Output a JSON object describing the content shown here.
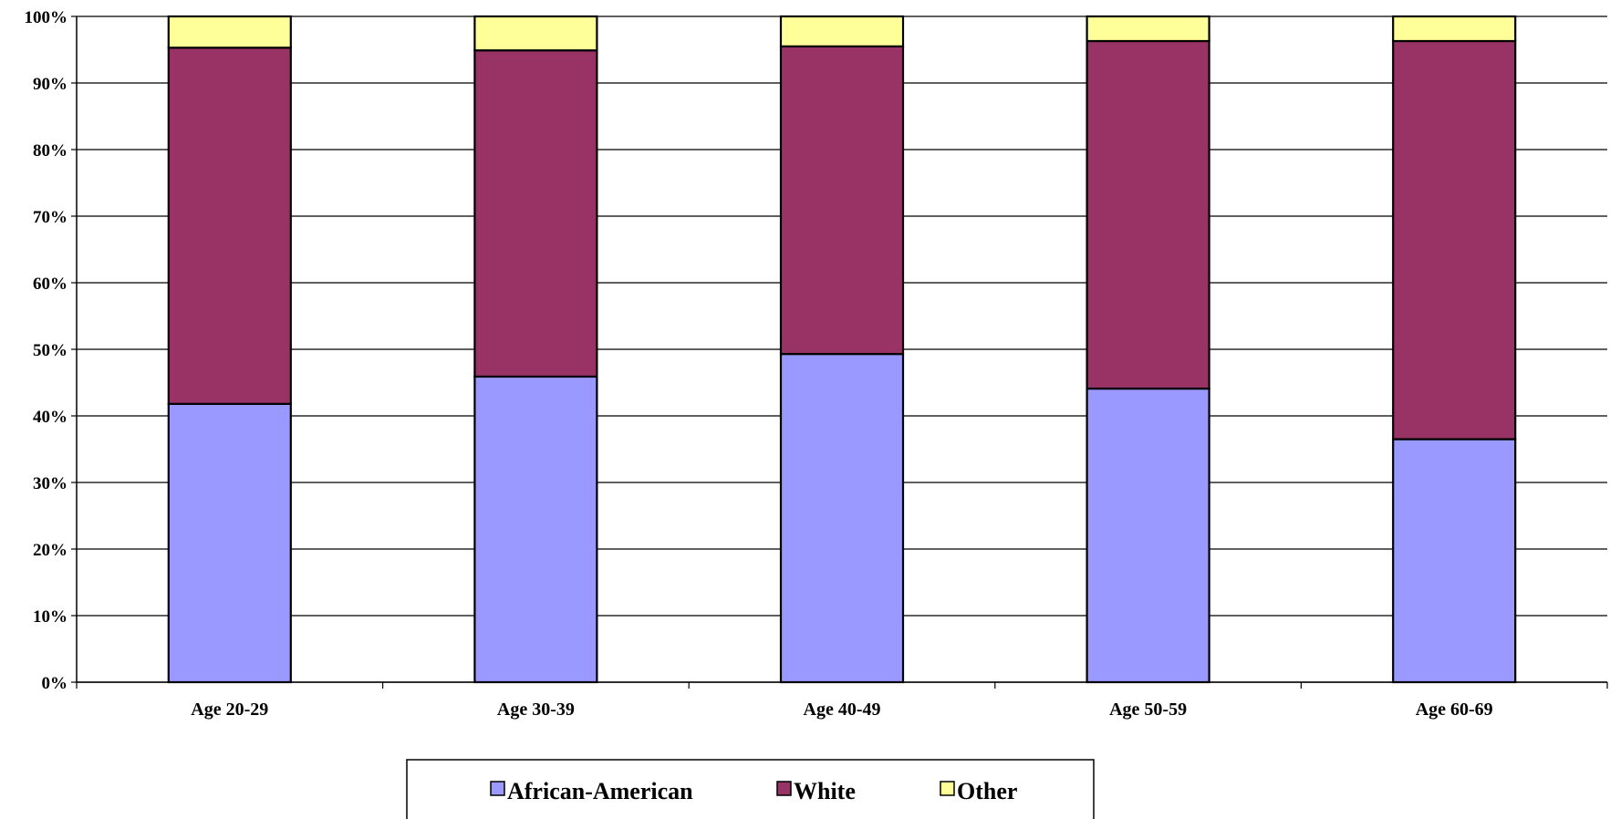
{
  "chart_data": {
    "type": "bar",
    "stacked": true,
    "percent": true,
    "title": "",
    "xlabel": "",
    "ylabel": "",
    "ylim": [
      0,
      100
    ],
    "y_ticks": [
      "0%",
      "10%",
      "20%",
      "30%",
      "40%",
      "50%",
      "60%",
      "70%",
      "80%",
      "90%",
      "100%"
    ],
    "categories": [
      "Age 20-29",
      "Age 30-39",
      "Age 40-49",
      "Age 50-59",
      "Age 60-69"
    ],
    "series": [
      {
        "name": "African-American",
        "color": "#9999ff",
        "values": [
          41.8,
          45.9,
          49.3,
          44.1,
          36.5
        ]
      },
      {
        "name": "White",
        "color": "#993366",
        "values": [
          53.5,
          49.0,
          46.2,
          52.2,
          59.8
        ]
      },
      {
        "name": "Other",
        "color": "#ffff99",
        "values": [
          4.7,
          5.1,
          4.5,
          3.7,
          3.7
        ]
      }
    ],
    "grid": "horizontal",
    "legend": "bottom"
  }
}
